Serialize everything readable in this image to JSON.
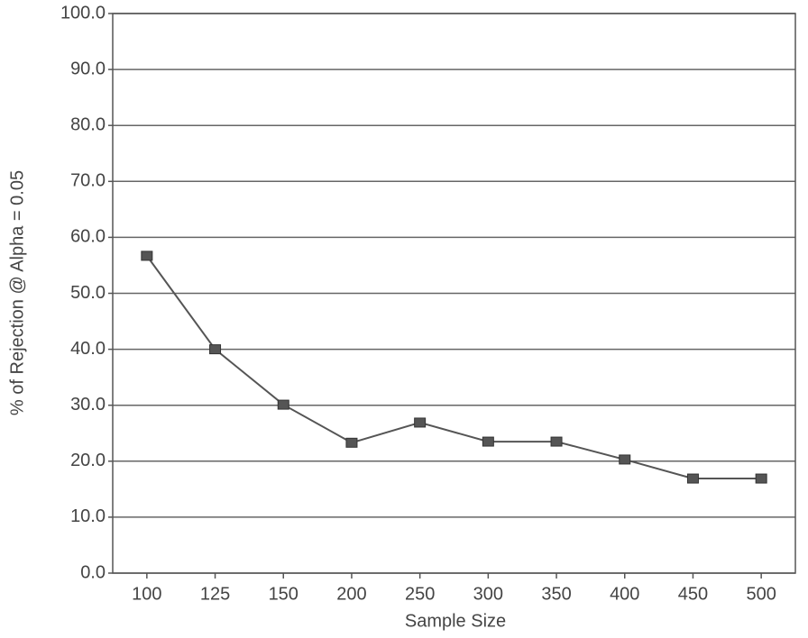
{
  "chart_data": {
    "type": "line",
    "x_label": "Sample Size",
    "y_label": "% of Rejection @ Alpha = 0.05",
    "categories": [
      "100",
      "125",
      "150",
      "200",
      "250",
      "300",
      "350",
      "400",
      "450",
      "500"
    ],
    "series": [
      {
        "color": "#555555",
        "values": [
          56.7,
          40.0,
          30.1,
          23.3,
          26.9,
          23.5,
          23.5,
          20.3,
          16.9,
          16.9
        ]
      }
    ],
    "ylim": [
      0,
      100
    ],
    "yticks": [
      {
        "value": 0,
        "label": "0.0"
      },
      {
        "value": 10,
        "label": "10.0"
      },
      {
        "value": 20,
        "label": "20.0"
      },
      {
        "value": 30,
        "label": "30.0"
      },
      {
        "value": 40,
        "label": "40.0"
      },
      {
        "value": 50,
        "label": "50.0"
      },
      {
        "value": 60,
        "label": "60.0"
      },
      {
        "value": 70,
        "label": "70.0"
      },
      {
        "value": 80,
        "label": "80.0"
      },
      {
        "value": 90,
        "label": "90.0"
      },
      {
        "value": 100,
        "label": "100.0"
      }
    ],
    "grid": true
  }
}
